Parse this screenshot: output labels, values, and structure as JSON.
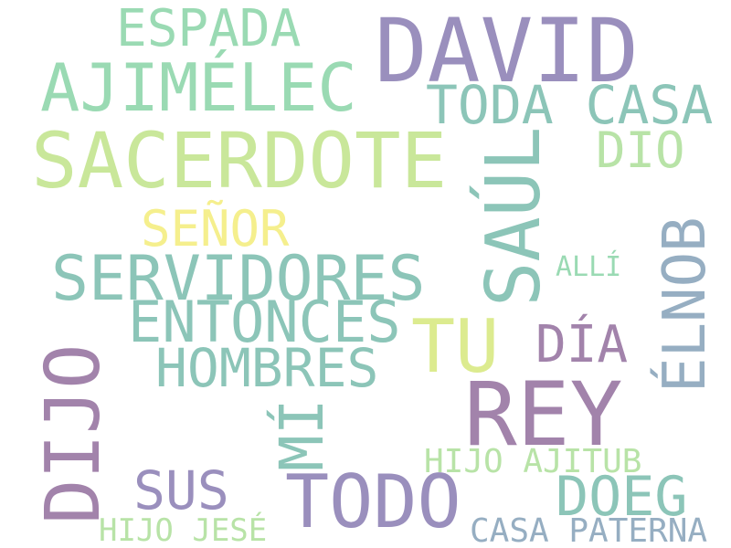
{
  "words": {
    "david": "DAVID",
    "espada": "ESPADA",
    "ajimelec": "AJIMÉLEC",
    "toda_casa": "TODA CASA",
    "sacerdote": "SACERDOTE",
    "dio": "DIO",
    "saul": "SAÚL",
    "senor": "SEÑOR",
    "servidores": "SERVIDORES",
    "alli": "ALLÍ",
    "elnob": "ÉLNOB",
    "entonces": "ENTONCES",
    "tu": "TU",
    "dia": "DÍA",
    "hombres": "HOMBRES",
    "dijo": "DIJO",
    "rey": "REY",
    "mi": "MÍ",
    "hijo_ajitub": "HIJO AJITUB",
    "sus": "SUS",
    "todo": "TODO",
    "doeg": "DOEG",
    "hijo_jese": "HIJO JESÉ",
    "casa_paterna": "CASA PATERNA"
  },
  "colors": {
    "purple": "#9a8fbd",
    "mauve": "#a283ab",
    "teal": "#8cc5b8",
    "mint": "#9adab3",
    "lime": "#c9e79a",
    "yellow": "#f5ef8d",
    "slate": "#96aec2",
    "pale_green": "#b8e3a7",
    "light_lime": "#dceb8f"
  }
}
